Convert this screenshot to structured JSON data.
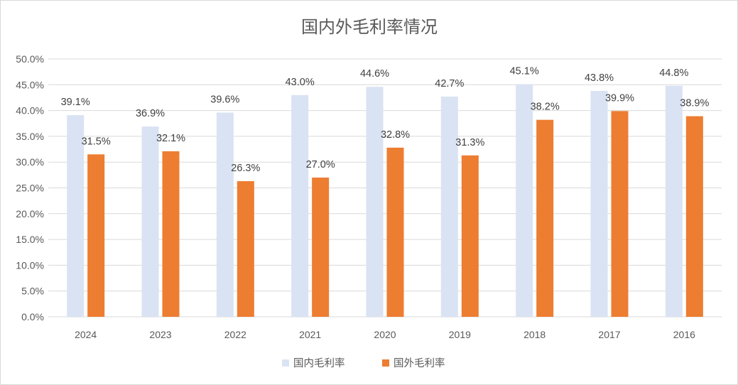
{
  "chart_data": {
    "type": "bar",
    "title": "国内外毛利率情况",
    "categories": [
      "2024",
      "2023",
      "2022",
      "2021",
      "2020",
      "2019",
      "2018",
      "2017",
      "2016"
    ],
    "series": [
      {
        "name": "国内毛利率",
        "color": "#dae3f3",
        "values": [
          39.1,
          36.9,
          39.6,
          43.0,
          44.6,
          42.7,
          45.1,
          43.8,
          44.8
        ],
        "labels": [
          "39.1%",
          "36.9%",
          "39.6%",
          "43.0%",
          "44.6%",
          "42.7%",
          "45.1%",
          "43.8%",
          "44.8%"
        ]
      },
      {
        "name": "国外毛利率",
        "color": "#ed7d31",
        "values": [
          31.5,
          32.1,
          26.3,
          27.0,
          32.8,
          31.3,
          38.2,
          39.9,
          38.9
        ],
        "labels": [
          "31.5%",
          "32.1%",
          "26.3%",
          "27.0%",
          "32.8%",
          "31.3%",
          "38.2%",
          "39.9%",
          "38.9%"
        ]
      }
    ],
    "ylim": [
      0,
      50
    ],
    "yticks": [
      0,
      5,
      10,
      15,
      20,
      25,
      30,
      35,
      40,
      45,
      50
    ],
    "ytick_labels": [
      "0.0%",
      "5.0%",
      "10.0%",
      "15.0%",
      "20.0%",
      "25.0%",
      "30.0%",
      "35.0%",
      "40.0%",
      "45.0%",
      "50.0%"
    ],
    "xlabel": "",
    "ylabel": "",
    "grid": true,
    "legend_position": "bottom"
  }
}
